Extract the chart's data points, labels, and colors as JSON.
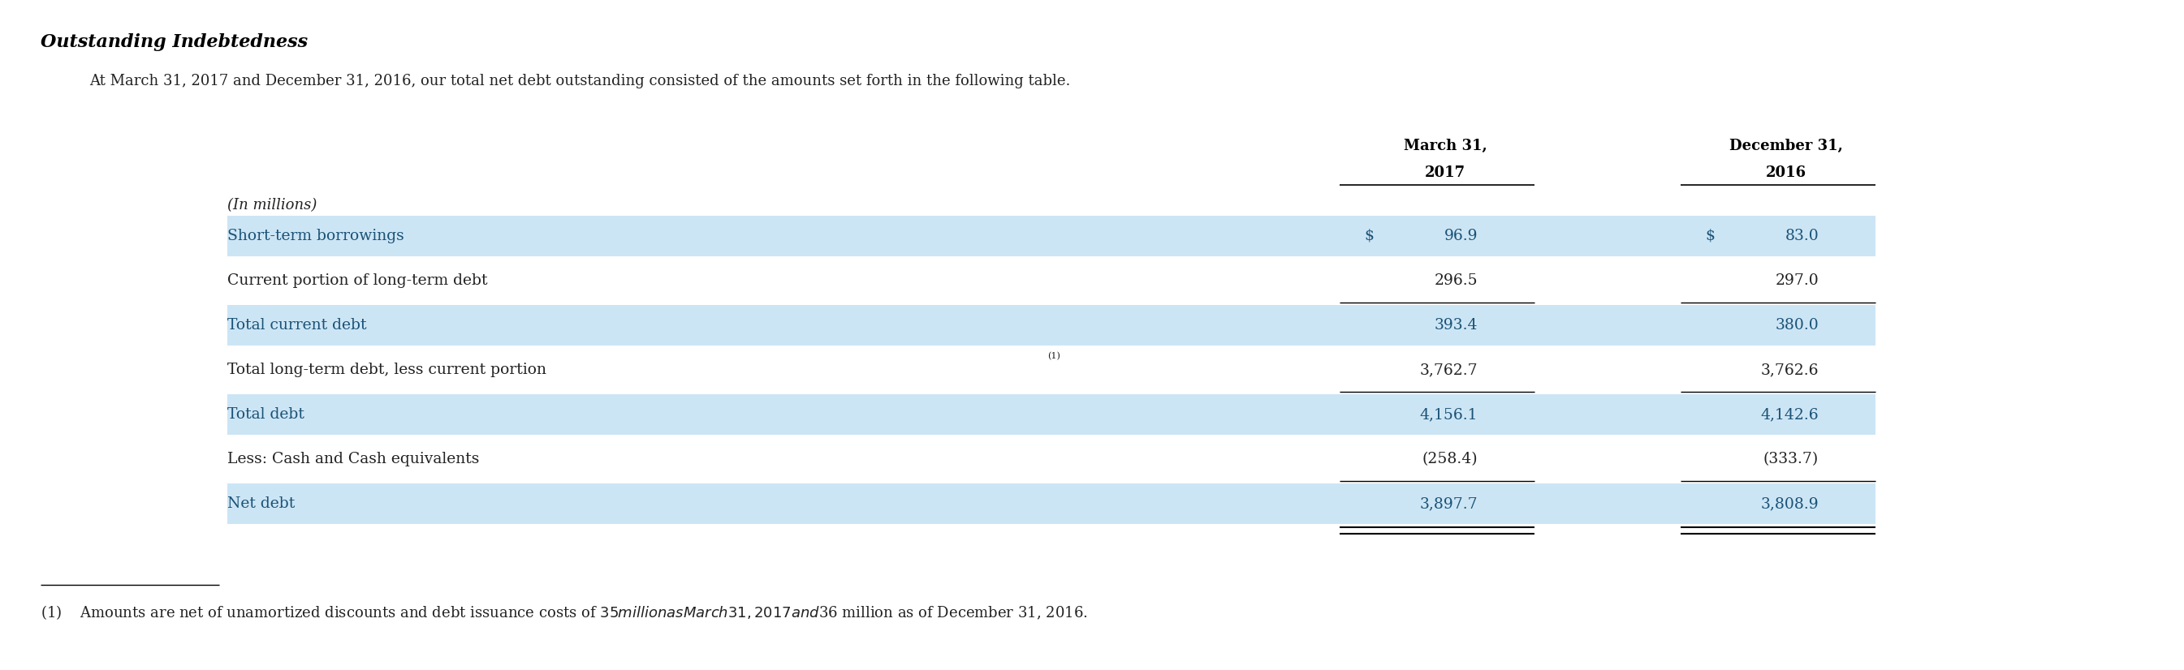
{
  "title": "Outstanding Indebtedness",
  "subtitle": "At March 31, 2017 and December 31, 2016, our total net debt outstanding consisted of the amounts set forth in the following table.",
  "col_headers": [
    [
      "March 31,",
      "2017"
    ],
    [
      "December 31,",
      "2016"
    ]
  ],
  "in_millions_label": "(In millions)",
  "rows": [
    {
      "label": "Short-term borrowings",
      "dollar_sign": true,
      "val1": "96.9",
      "val2": "83.0",
      "highlight": true,
      "bottom_border": false
    },
    {
      "label": "Current portion of long-term debt",
      "dollar_sign": false,
      "val1": "296.5",
      "val2": "297.0",
      "highlight": false,
      "bottom_border": true
    },
    {
      "label": "Total current debt",
      "dollar_sign": false,
      "val1": "393.4",
      "val2": "380.0",
      "highlight": true,
      "bottom_border": false
    },
    {
      "label": "Total long-term debt, less current portion",
      "dollar_sign": false,
      "val1": "3,762.7",
      "val2": "3,762.6",
      "highlight": false,
      "bottom_border": true,
      "superscript": true
    },
    {
      "label": "Total debt",
      "dollar_sign": false,
      "val1": "4,156.1",
      "val2": "4,142.6",
      "highlight": true,
      "bottom_border": false
    },
    {
      "label": "Less: Cash and Cash equivalents",
      "dollar_sign": false,
      "val1": "(258.4)",
      "val2": "(333.7)",
      "highlight": false,
      "bottom_border": true
    },
    {
      "label": "Net debt",
      "dollar_sign": false,
      "val1": "3,897.7",
      "val2": "3,808.9",
      "highlight": true,
      "bottom_border": false,
      "double_underline": true
    }
  ],
  "footnote_text": "(1)    Amounts are net of unamortized discounts and debt issuance costs of $35 million as March 31, 2017 and $36 million as of December 31, 2016.",
  "highlight_color": "#cce5f5",
  "text_color_highlight": "#1a5276",
  "text_color_normal": "#222222",
  "header_color": "#000000",
  "bg_color": "#ffffff"
}
